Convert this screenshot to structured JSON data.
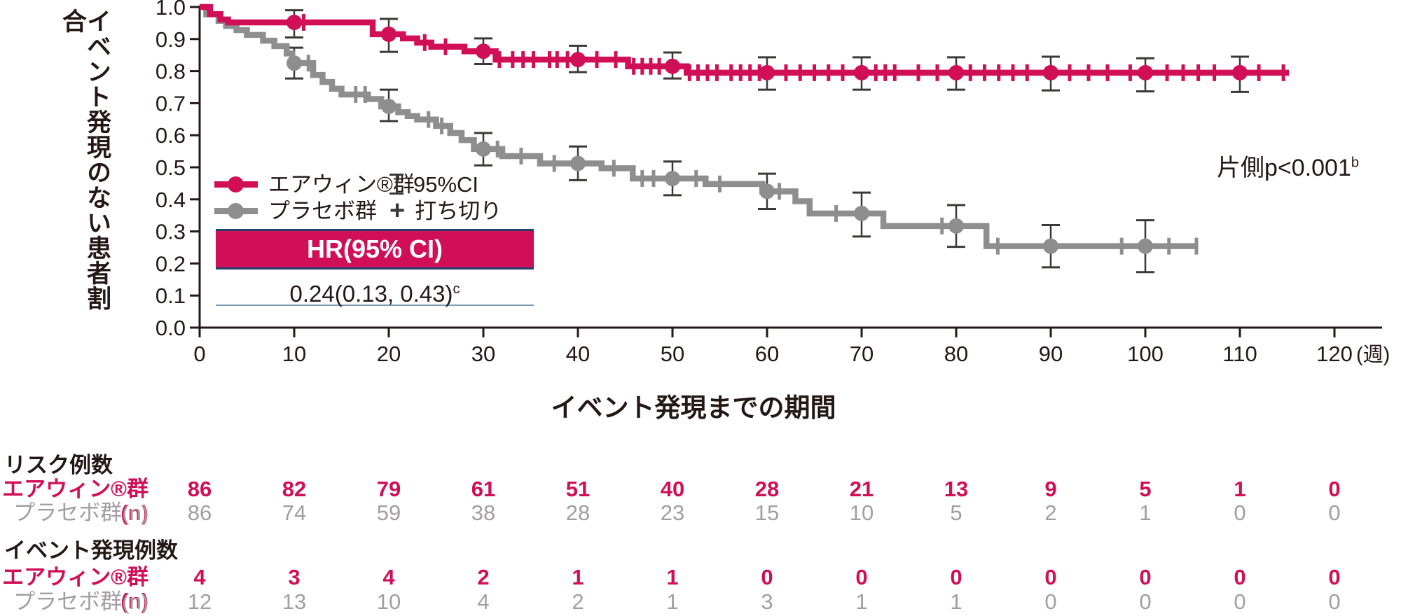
{
  "colors": {
    "treatment": "#d00f56",
    "placebo": "#8e8e8e",
    "placebo_text": "#a39ca0",
    "ink": "#231815",
    "error_bar": "#3c3835",
    "banner_border": "#24406b",
    "divider": "#7e9ab0",
    "plot_bg": "#ffffff"
  },
  "chart_data": {
    "type": "line",
    "subtype": "kaplan-meier",
    "ylabel": "イベント発現のない患者割合",
    "xlabel": "イベント発現までの期間",
    "x_unit": "(週)",
    "xlim": [
      0,
      120
    ],
    "ylim": [
      0.0,
      1.0
    ],
    "x_ticks": [
      "0",
      "10",
      "20",
      "30",
      "40",
      "50",
      "60",
      "70",
      "80",
      "90",
      "100",
      "110",
      "120"
    ],
    "y_ticks": [
      "1.0",
      "0.9",
      "0.8",
      "0.7",
      "0.6",
      "0.5",
      "0.4",
      "0.3",
      "0.2",
      "0.1",
      "0.0"
    ],
    "grid": false,
    "annotation": {
      "p_label": "片側p<0.001",
      "p_sup": "b"
    },
    "hr_box": {
      "header": "HR(95% CI)",
      "value": "0.24(0.13, 0.43)",
      "value_sup": "c"
    },
    "legend": {
      "series": [
        {
          "label": "エアウィン®群"
        },
        {
          "label": "プラセボ群"
        }
      ],
      "symbols": [
        {
          "icon": "error-bar-icon",
          "label": "95%CI"
        },
        {
          "icon": "plus-icon",
          "label": "打ち切り"
        }
      ]
    },
    "series": [
      {
        "name": "プラセボ群",
        "color": "#8e8e8e",
        "end_week": 105.6,
        "steps": [
          [
            0,
            1.0
          ],
          [
            0.7,
            0.977
          ],
          [
            2,
            0.957
          ],
          [
            2.8,
            0.941
          ],
          [
            3.9,
            0.928
          ],
          [
            5,
            0.913
          ],
          [
            6.7,
            0.895
          ],
          [
            7.9,
            0.878
          ],
          [
            9.2,
            0.855
          ],
          [
            9.8,
            0.825
          ],
          [
            12,
            0.788
          ],
          [
            13,
            0.766
          ],
          [
            14,
            0.745
          ],
          [
            15,
            0.727
          ],
          [
            17.8,
            0.713
          ],
          [
            19.2,
            0.69
          ],
          [
            21,
            0.672
          ],
          [
            22,
            0.66
          ],
          [
            23,
            0.649
          ],
          [
            25,
            0.629
          ],
          [
            26.5,
            0.607
          ],
          [
            27.7,
            0.585
          ],
          [
            29,
            0.557
          ],
          [
            32,
            0.535
          ],
          [
            36,
            0.512
          ],
          [
            42.5,
            0.497
          ],
          [
            45.8,
            0.465
          ],
          [
            53.5,
            0.448
          ],
          [
            59.5,
            0.425
          ],
          [
            63,
            0.394
          ],
          [
            64.5,
            0.356
          ],
          [
            72.3,
            0.317
          ],
          [
            83.2,
            0.254
          ]
        ],
        "markers": [
          {
            "w": 10,
            "v": 0.825,
            "lo": 0.777,
            "hi": 0.873
          },
          {
            "w": 20,
            "v": 0.69,
            "lo": 0.644,
            "hi": 0.742
          },
          {
            "w": 30,
            "v": 0.557,
            "lo": 0.506,
            "hi": 0.607
          },
          {
            "w": 40,
            "v": 0.512,
            "lo": 0.46,
            "hi": 0.565
          },
          {
            "w": 50,
            "v": 0.465,
            "lo": 0.413,
            "hi": 0.518
          },
          {
            "w": 60,
            "v": 0.425,
            "lo": 0.37,
            "hi": 0.48
          },
          {
            "w": 70,
            "v": 0.356,
            "lo": 0.284,
            "hi": 0.421
          },
          {
            "w": 80,
            "v": 0.317,
            "lo": 0.252,
            "hi": 0.382
          },
          {
            "w": 90,
            "v": 0.254,
            "lo": 0.188,
            "hi": 0.32
          },
          {
            "w": 100,
            "v": 0.254,
            "lo": 0.173,
            "hi": 0.335
          }
        ],
        "censors": [
          11.5,
          16.5,
          17.5,
          24.2,
          25.6,
          31.5,
          34,
          37.5,
          43.8,
          46.8,
          48,
          52.5,
          55,
          61.3,
          67.3,
          78.5,
          84.4,
          97.5,
          102.5,
          105.4
        ]
      },
      {
        "name": "エアウィン®群",
        "color": "#d00f56",
        "end_week": 115.2,
        "steps": [
          [
            0,
            1.0
          ],
          [
            1.1,
            0.978
          ],
          [
            2.2,
            0.961
          ],
          [
            3,
            0.952
          ],
          [
            18.3,
            0.915
          ],
          [
            21.5,
            0.902
          ],
          [
            23,
            0.889
          ],
          [
            24.5,
            0.876
          ],
          [
            28,
            0.862
          ],
          [
            31.3,
            0.836
          ],
          [
            45.3,
            0.815
          ],
          [
            51.5,
            0.795
          ]
        ],
        "markers": [
          {
            "w": 10,
            "v": 0.952,
            "lo": 0.905,
            "hi": 0.99
          },
          {
            "w": 20,
            "v": 0.915,
            "lo": 0.86,
            "hi": 0.963
          },
          {
            "w": 30,
            "v": 0.862,
            "lo": 0.822,
            "hi": 0.902
          },
          {
            "w": 40,
            "v": 0.836,
            "lo": 0.797,
            "hi": 0.879
          },
          {
            "w": 50,
            "v": 0.815,
            "lo": 0.777,
            "hi": 0.858
          },
          {
            "w": 60,
            "v": 0.795,
            "lo": 0.742,
            "hi": 0.843
          },
          {
            "w": 70,
            "v": 0.795,
            "lo": 0.742,
            "hi": 0.843
          },
          {
            "w": 80,
            "v": 0.795,
            "lo": 0.742,
            "hi": 0.843
          },
          {
            "w": 90,
            "v": 0.795,
            "lo": 0.74,
            "hi": 0.845
          },
          {
            "w": 100,
            "v": 0.795,
            "lo": 0.737,
            "hi": 0.84
          },
          {
            "w": 110,
            "v": 0.795,
            "lo": 0.735,
            "hi": 0.845
          }
        ],
        "censors": [
          11,
          23.8,
          26,
          31.7,
          33.1,
          34.2,
          35.3,
          37,
          37.8,
          38.9,
          42,
          44,
          45.9,
          46.8,
          47.7,
          48.6,
          51.8,
          52.7,
          53.7,
          54.7,
          56.2,
          57.2,
          58.2,
          59.2,
          62,
          63.5,
          65,
          66.5,
          68,
          71.5,
          72.5,
          73.5,
          76,
          78,
          81.5,
          83,
          84.5,
          86,
          87.5,
          92,
          94,
          96,
          98.4,
          102.3,
          104,
          105.6,
          107.3,
          112,
          114.6
        ]
      }
    ]
  },
  "risk_table": {
    "columns": [
      0,
      10,
      20,
      30,
      40,
      50,
      60,
      70,
      80,
      90,
      100,
      110,
      120
    ],
    "section_risk_title": "リスク例数",
    "section_events_title": "イベント発現例数",
    "row_labels": {
      "treatment": "エアウィン®群(n)",
      "placebo": "プラセボ群(n)"
    },
    "at_risk": {
      "treatment": [
        86,
        82,
        79,
        61,
        51,
        40,
        28,
        21,
        13,
        9,
        5,
        1,
        0
      ],
      "placebo": [
        86,
        74,
        59,
        38,
        28,
        23,
        15,
        10,
        5,
        2,
        1,
        0,
        0
      ]
    },
    "events": {
      "treatment": [
        4,
        3,
        4,
        2,
        1,
        1,
        0,
        0,
        0,
        0,
        0,
        0,
        0
      ],
      "placebo": [
        12,
        13,
        10,
        4,
        2,
        1,
        3,
        1,
        1,
        0,
        0,
        0,
        0
      ]
    }
  }
}
